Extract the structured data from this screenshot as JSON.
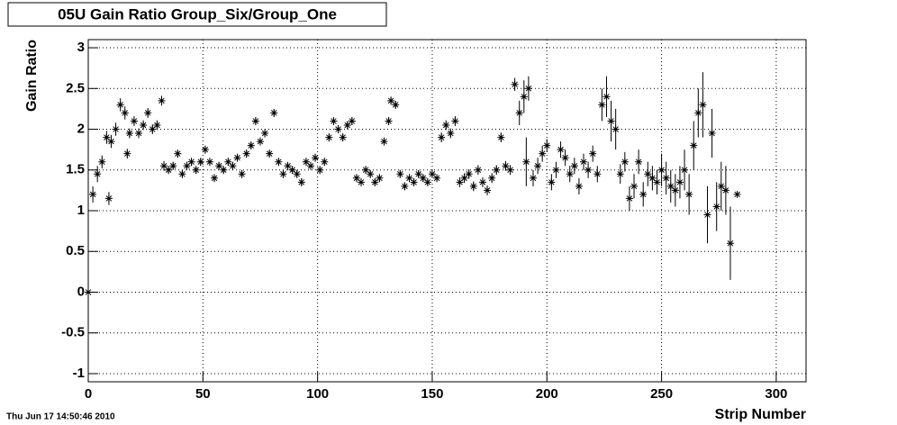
{
  "chart_data": {
    "type": "scatter",
    "title": "05U Gain Ratio Group_Six/Group_One",
    "xlabel": "Strip Number",
    "ylabel": "Gain Ratio",
    "timestamp": "Thu Jun 17 14:50:46 2010",
    "color": "#000000",
    "grid": true,
    "xlim": [
      0,
      313
    ],
    "ylim": [
      -1.1,
      3.1
    ],
    "xticks": [
      0,
      50,
      100,
      150,
      200,
      250,
      300
    ],
    "yticks": [
      -1,
      -0.5,
      0,
      0.5,
      1,
      1.5,
      2,
      2.5,
      3
    ],
    "x": [
      0,
      2,
      4,
      6,
      8,
      9,
      10,
      12,
      14,
      16,
      17,
      18,
      20,
      22,
      24,
      26,
      28,
      30,
      32,
      33,
      35,
      37,
      39,
      41,
      43,
      45,
      47,
      49,
      51,
      53,
      55,
      57,
      59,
      61,
      63,
      65,
      67,
      69,
      71,
      73,
      75,
      77,
      79,
      81,
      83,
      85,
      87,
      89,
      91,
      93,
      95,
      97,
      99,
      101,
      103,
      105,
      107,
      109,
      111,
      113,
      115,
      117,
      119,
      121,
      123,
      125,
      127,
      129,
      131,
      132,
      134,
      136,
      138,
      140,
      142,
      144,
      146,
      148,
      150,
      152,
      154,
      156,
      158,
      160,
      162,
      164,
      166,
      168,
      170,
      172,
      174,
      176,
      178,
      180,
      182,
      184,
      186,
      188,
      190,
      191,
      192,
      194,
      196,
      198,
      200,
      202,
      204,
      206,
      208,
      210,
      212,
      214,
      216,
      218,
      220,
      222,
      224,
      226,
      228,
      230,
      232,
      234,
      236,
      238,
      240,
      242,
      244,
      246,
      248,
      250,
      252,
      254,
      256,
      258,
      260,
      262,
      264,
      266,
      268,
      270,
      272,
      274,
      276,
      278,
      280,
      283
    ],
    "values": [
      0,
      1.2,
      1.45,
      1.6,
      1.9,
      1.15,
      1.85,
      2.0,
      2.3,
      2.2,
      1.7,
      1.95,
      2.1,
      1.95,
      2.05,
      2.2,
      2.0,
      2.05,
      2.35,
      1.55,
      1.5,
      1.55,
      1.7,
      1.45,
      1.55,
      1.6,
      1.5,
      1.6,
      1.75,
      1.6,
      1.4,
      1.55,
      1.5,
      1.6,
      1.55,
      1.65,
      1.45,
      1.7,
      1.8,
      2.1,
      1.85,
      1.95,
      1.7,
      2.2,
      1.6,
      1.45,
      1.55,
      1.5,
      1.45,
      1.35,
      1.6,
      1.55,
      1.65,
      1.5,
      1.6,
      1.9,
      2.1,
      2.0,
      1.9,
      2.05,
      2.1,
      1.4,
      1.35,
      1.5,
      1.45,
      1.35,
      1.4,
      1.85,
      2.1,
      2.35,
      2.3,
      1.45,
      1.3,
      1.4,
      1.35,
      1.45,
      1.4,
      1.35,
      1.45,
      1.4,
      1.9,
      2.05,
      1.95,
      2.1,
      1.35,
      1.4,
      1.45,
      1.3,
      1.5,
      1.35,
      1.25,
      1.4,
      1.5,
      1.9,
      1.55,
      1.5,
      2.55,
      2.2,
      2.4,
      1.6,
      2.5,
      1.4,
      1.55,
      1.7,
      1.8,
      1.35,
      1.5,
      1.75,
      1.65,
      1.45,
      1.55,
      1.3,
      1.6,
      1.5,
      1.7,
      1.45,
      2.3,
      2.4,
      2.1,
      2.0,
      1.45,
      1.6,
      1.15,
      1.3,
      1.6,
      1.2,
      1.45,
      1.4,
      1.35,
      1.5,
      1.4,
      1.3,
      1.25,
      1.35,
      1.5,
      1.2,
      1.8,
      2.2,
      2.3,
      0.95,
      1.95,
      1.05,
      1.3,
      1.25,
      0.6,
      1.2
    ],
    "errors": [
      0,
      0.1,
      0.1,
      0.08,
      0.08,
      0.08,
      0.08,
      0.08,
      0.08,
      0.08,
      0.06,
      0.06,
      0.06,
      0.06,
      0.06,
      0.06,
      0.06,
      0.06,
      0.06,
      0.06,
      0.05,
      0.05,
      0.05,
      0.05,
      0.05,
      0.05,
      0.05,
      0.05,
      0.05,
      0.05,
      0.05,
      0.05,
      0.05,
      0.05,
      0.05,
      0.05,
      0.05,
      0.05,
      0.05,
      0.05,
      0.05,
      0.05,
      0.05,
      0.05,
      0.05,
      0.05,
      0.05,
      0.05,
      0.05,
      0.05,
      0.05,
      0.05,
      0.05,
      0.05,
      0.05,
      0.05,
      0.05,
      0.05,
      0.05,
      0.05,
      0.05,
      0.05,
      0.05,
      0.05,
      0.05,
      0.05,
      0.05,
      0.05,
      0.05,
      0.05,
      0.05,
      0.05,
      0.05,
      0.05,
      0.05,
      0.05,
      0.05,
      0.05,
      0.05,
      0.05,
      0.06,
      0.06,
      0.06,
      0.06,
      0.06,
      0.06,
      0.06,
      0.06,
      0.06,
      0.06,
      0.06,
      0.06,
      0.06,
      0.06,
      0.06,
      0.06,
      0.08,
      0.15,
      0.2,
      0.3,
      0.15,
      0.1,
      0.1,
      0.1,
      0.08,
      0.1,
      0.1,
      0.1,
      0.1,
      0.1,
      0.1,
      0.1,
      0.1,
      0.1,
      0.1,
      0.1,
      0.2,
      0.25,
      0.25,
      0.25,
      0.12,
      0.12,
      0.15,
      0.15,
      0.15,
      0.15,
      0.15,
      0.15,
      0.15,
      0.2,
      0.2,
      0.2,
      0.2,
      0.2,
      0.25,
      0.25,
      0.3,
      0.3,
      0.4,
      0.35,
      0.3,
      0.3,
      0.3,
      0.3,
      0.45,
      0
    ]
  }
}
